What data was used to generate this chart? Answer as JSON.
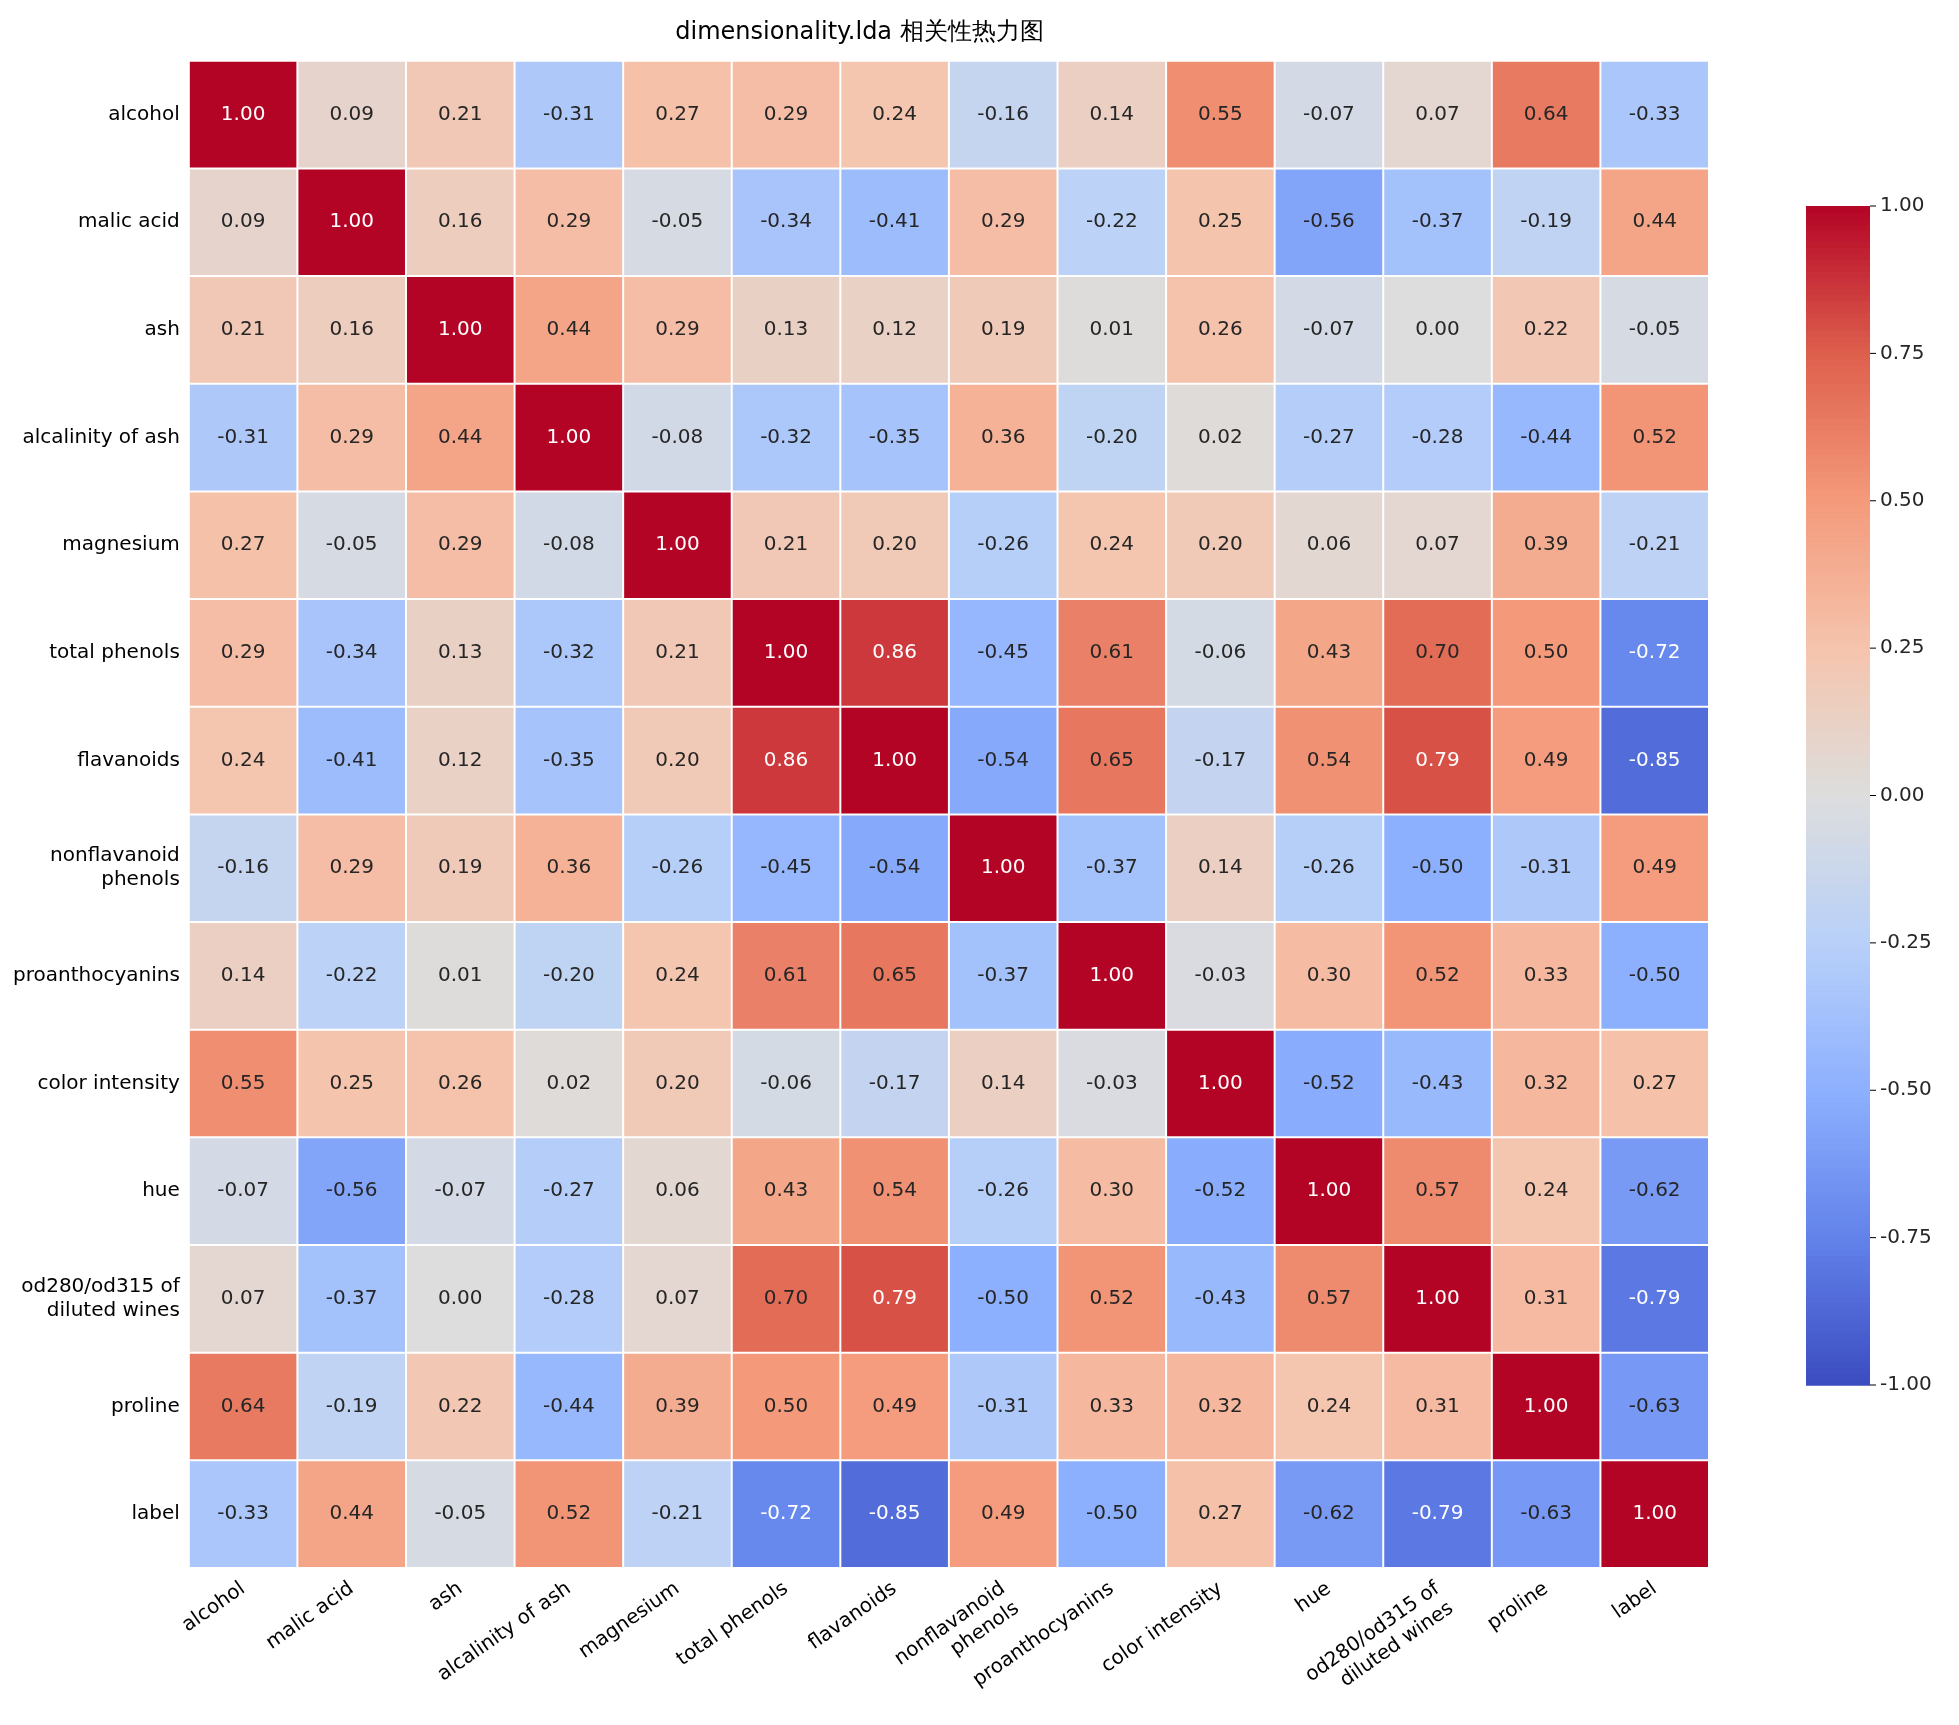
{
  "chart_data": {
    "type": "heatmap",
    "title": "dimensionality.lda 相关性热力图",
    "categories": [
      "alcohol",
      "malic acid",
      "ash",
      "alcalinity of ash",
      "magnesium",
      "total phenols",
      "flavanoids",
      "nonflavanoid\nphenols",
      "proanthocyanins",
      "color intensity",
      "hue",
      "od280/od315 of\ndiluted wines",
      "proline",
      "label"
    ],
    "y_categories": [
      "alcohol",
      "malic acid",
      "ash",
      "alcalinity of ash",
      "magnesium",
      "total phenols",
      "flavanoids",
      "nonflavanoid\nphenols",
      "proanthocyanins",
      "color intensity",
      "hue",
      "od280/od315 of\ndiluted wines",
      "proline",
      "label"
    ],
    "cells": [
      [
        1.0,
        0.09,
        0.21,
        -0.31,
        0.27,
        0.29,
        0.24,
        -0.16,
        0.14,
        0.55,
        -0.07,
        0.07,
        0.64,
        -0.33
      ],
      [
        0.09,
        1.0,
        0.16,
        0.29,
        -0.05,
        -0.34,
        -0.41,
        0.29,
        -0.22,
        0.25,
        -0.56,
        -0.37,
        -0.19,
        0.44
      ],
      [
        0.21,
        0.16,
        1.0,
        0.44,
        0.29,
        0.13,
        0.12,
        0.19,
        0.01,
        0.26,
        -0.07,
        0.0,
        0.22,
        -0.05
      ],
      [
        -0.31,
        0.29,
        0.44,
        1.0,
        -0.08,
        -0.32,
        -0.35,
        0.36,
        -0.2,
        0.02,
        -0.27,
        -0.28,
        -0.44,
        0.52
      ],
      [
        0.27,
        -0.05,
        0.29,
        -0.08,
        1.0,
        0.21,
        0.2,
        -0.26,
        0.24,
        0.2,
        0.06,
        0.07,
        0.39,
        -0.21
      ],
      [
        0.29,
        -0.34,
        0.13,
        -0.32,
        0.21,
        1.0,
        0.86,
        -0.45,
        0.61,
        -0.06,
        0.43,
        0.7,
        0.5,
        -0.72
      ],
      [
        0.24,
        -0.41,
        0.12,
        -0.35,
        0.2,
        0.86,
        1.0,
        -0.54,
        0.65,
        -0.17,
        0.54,
        0.79,
        0.49,
        -0.85
      ],
      [
        -0.16,
        0.29,
        0.19,
        0.36,
        -0.26,
        -0.45,
        -0.54,
        1.0,
        -0.37,
        0.14,
        -0.26,
        -0.5,
        -0.31,
        0.49
      ],
      [
        0.14,
        -0.22,
        0.01,
        -0.2,
        0.24,
        0.61,
        0.65,
        -0.37,
        1.0,
        -0.03,
        0.3,
        0.52,
        0.33,
        -0.5
      ],
      [
        0.55,
        0.25,
        0.26,
        0.02,
        0.2,
        -0.06,
        -0.17,
        0.14,
        -0.03,
        1.0,
        -0.52,
        -0.43,
        0.32,
        0.27
      ],
      [
        -0.07,
        -0.56,
        -0.07,
        -0.27,
        0.06,
        0.43,
        0.54,
        -0.26,
        0.3,
        -0.52,
        1.0,
        0.57,
        0.24,
        -0.62
      ],
      [
        0.07,
        -0.37,
        0.0,
        -0.28,
        0.07,
        0.7,
        0.79,
        -0.5,
        0.52,
        -0.43,
        0.57,
        1.0,
        0.31,
        -0.79
      ],
      [
        0.64,
        -0.19,
        0.22,
        -0.44,
        0.39,
        0.5,
        0.49,
        -0.31,
        0.33,
        0.32,
        0.24,
        0.31,
        1.0,
        -0.63
      ],
      [
        -0.33,
        0.44,
        -0.05,
        0.52,
        -0.21,
        -0.72,
        -0.85,
        0.49,
        -0.5,
        0.27,
        -0.62,
        -0.79,
        -0.63,
        1.0
      ]
    ],
    "cell_labels": [
      [
        "1.00",
        "0.09",
        "0.21",
        "-0.31",
        "0.27",
        "0.29",
        "0.24",
        "-0.16",
        "0.14",
        "0.55",
        "-0.07",
        "0.07",
        "0.64",
        "-0.33"
      ],
      [
        "0.09",
        "1.00",
        "0.16",
        "0.29",
        "-0.05",
        "-0.34",
        "-0.41",
        "0.29",
        "-0.22",
        "0.25",
        "-0.56",
        "-0.37",
        "-0.19",
        "0.44"
      ],
      [
        "0.21",
        "0.16",
        "1.00",
        "0.44",
        "0.29",
        "0.13",
        "0.12",
        "0.19",
        "0.01",
        "0.26",
        "-0.07",
        "0.00",
        "0.22",
        "-0.05"
      ],
      [
        "-0.31",
        "0.29",
        "0.44",
        "1.00",
        "-0.08",
        "-0.32",
        "-0.35",
        "0.36",
        "-0.20",
        "0.02",
        "-0.27",
        "-0.28",
        "-0.44",
        "0.52"
      ],
      [
        "0.27",
        "-0.05",
        "0.29",
        "-0.08",
        "1.00",
        "0.21",
        "0.20",
        "-0.26",
        "0.24",
        "0.20",
        "0.06",
        "0.07",
        "0.39",
        "-0.21"
      ],
      [
        "0.29",
        "-0.34",
        "0.13",
        "-0.32",
        "0.21",
        "1.00",
        "0.86",
        "-0.45",
        "0.61",
        "-0.06",
        "0.43",
        "0.70",
        "0.50",
        "-0.72"
      ],
      [
        "0.24",
        "-0.41",
        "0.12",
        "-0.35",
        "0.20",
        "0.86",
        "1.00",
        "-0.54",
        "0.65",
        "-0.17",
        "0.54",
        "0.79",
        "0.49",
        "-0.85"
      ],
      [
        "-0.16",
        "0.29",
        "0.19",
        "0.36",
        "-0.26",
        "-0.45",
        "-0.54",
        "1.00",
        "-0.37",
        "0.14",
        "-0.26",
        "-0.50",
        "-0.31",
        "0.49"
      ],
      [
        "0.14",
        "-0.22",
        "0.01",
        "-0.20",
        "0.24",
        "0.61",
        "0.65",
        "-0.37",
        "1.00",
        "-0.03",
        "0.30",
        "0.52",
        "0.33",
        "-0.50"
      ],
      [
        "0.55",
        "0.25",
        "0.26",
        "0.02",
        "0.20",
        "-0.06",
        "-0.17",
        "0.14",
        "-0.03",
        "1.00",
        "-0.52",
        "-0.43",
        "0.32",
        "0.27"
      ],
      [
        "-0.07",
        "-0.56",
        "-0.07",
        "-0.27",
        "0.06",
        "0.43",
        "0.54",
        "-0.26",
        "0.30",
        "-0.52",
        "1.00",
        "0.57",
        "0.24",
        "-0.62"
      ],
      [
        "0.07",
        "-0.37",
        "0.00",
        "-0.28",
        "0.07",
        "0.70",
        "0.79",
        "-0.50",
        "0.52",
        "-0.43",
        "0.57",
        "1.00",
        "0.31",
        "-0.79"
      ],
      [
        "0.64",
        "-0.19",
        "0.22",
        "-0.44",
        "0.39",
        "0.50",
        "0.49",
        "-0.31",
        "0.33",
        "0.32",
        "0.24",
        "0.31",
        "1.00",
        "-0.63"
      ],
      [
        "-0.33",
        "0.44",
        "-0.05",
        "0.52",
        "-0.21",
        "-0.72",
        "-0.85",
        "0.49",
        "-0.50",
        "0.27",
        "-0.62",
        "-0.79",
        "-0.63",
        "1.00"
      ]
    ],
    "clim": [
      -1,
      1
    ],
    "cticks": [
      {
        "value": -1,
        "label": "-1.00"
      },
      {
        "value": -0.75,
        "label": "-0.75"
      },
      {
        "value": -0.5,
        "label": "-0.50"
      },
      {
        "value": -0.25,
        "label": "-0.25"
      },
      {
        "value": 0,
        "label": "0.00"
      },
      {
        "value": 0.25,
        "label": "0.25"
      },
      {
        "value": 0.5,
        "label": "0.50"
      },
      {
        "value": 0.75,
        "label": "0.75"
      },
      {
        "value": 1,
        "label": "1.00"
      }
    ]
  }
}
